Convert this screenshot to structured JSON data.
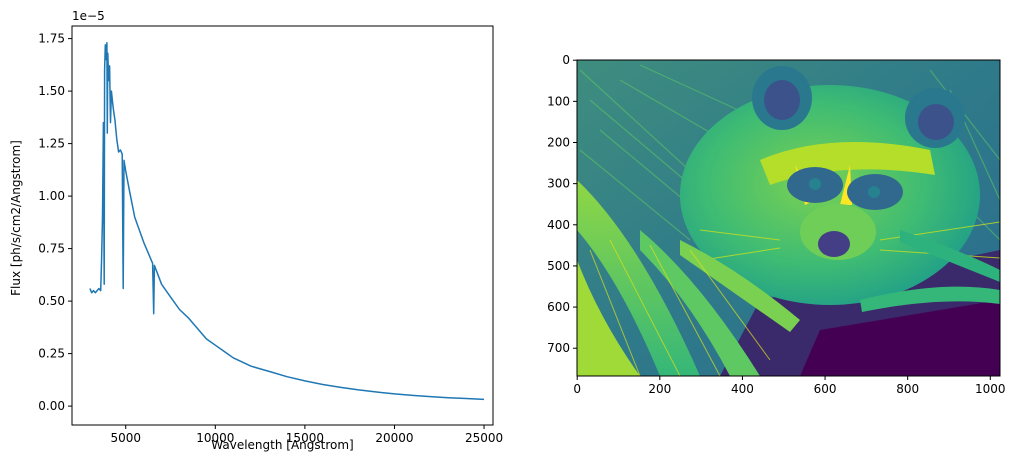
{
  "chart_data": [
    {
      "type": "line",
      "title": "",
      "xlabel": "Wavelength [Angstrom]",
      "ylabel": "Flux [ph/s/cm2/Angstrom]",
      "y_offset_label": "1e−5",
      "xlim": [
        2000,
        25500
      ],
      "ylim": [
        -0.09,
        1.81
      ],
      "x_ticks": [
        5000,
        10000,
        15000,
        20000,
        25000
      ],
      "x_tick_labels": [
        "5000",
        "10000",
        "15000",
        "20000",
        "25000"
      ],
      "y_ticks": [
        0.0,
        0.25,
        0.5,
        0.75,
        1.0,
        1.25,
        1.5,
        1.75
      ],
      "y_tick_labels": [
        "0.00",
        "0.25",
        "0.50",
        "0.75",
        "1.00",
        "1.25",
        "1.50",
        "1.75"
      ],
      "grid": false,
      "color": "#1f77b4",
      "series": [
        {
          "x": [
            3000,
            3100,
            3200,
            3300,
            3400,
            3500,
            3600,
            3650,
            3700,
            3750,
            3800,
            3820,
            3860,
            3900,
            3950,
            3970,
            4000,
            4050,
            4100,
            4150,
            4200,
            4250,
            4300,
            4400,
            4500,
            4600,
            4700,
            4800,
            4860,
            4900,
            5000,
            5200,
            5500,
            6000,
            6500,
            6563,
            6600,
            7000,
            7500,
            8000,
            8500,
            8700,
            8800,
            9000,
            9200,
            9500,
            10000,
            10500,
            11000,
            12000,
            12800,
            13000,
            14000,
            15000,
            16000,
            17000,
            18000,
            19000,
            20000,
            21000,
            22000,
            23000,
            24000,
            25000
          ],
          "y": [
            0.56,
            0.54,
            0.55,
            0.54,
            0.55,
            0.56,
            0.55,
            0.7,
            0.9,
            1.35,
            0.58,
            1.6,
            1.72,
            1.65,
            1.73,
            1.3,
            1.68,
            1.55,
            1.62,
            1.35,
            1.5,
            1.46,
            1.42,
            1.36,
            1.27,
            1.21,
            1.22,
            1.2,
            0.56,
            1.17,
            1.12,
            1.03,
            0.9,
            0.78,
            0.68,
            0.44,
            0.67,
            0.58,
            0.52,
            0.46,
            0.42,
            0.4,
            0.39,
            0.37,
            0.35,
            0.32,
            0.29,
            0.26,
            0.23,
            0.19,
            0.17,
            0.165,
            0.14,
            0.12,
            0.103,
            0.089,
            0.077,
            0.067,
            0.058,
            0.051,
            0.045,
            0.04,
            0.036,
            0.032
          ]
        }
      ]
    },
    {
      "type": "heatmap",
      "title": "",
      "colormap": "viridis",
      "image_shape": [
        768,
        1024
      ],
      "xlim": [
        -0.5,
        1023.5
      ],
      "ylim": [
        767.5,
        -0.5
      ],
      "x_ticks": [
        0,
        200,
        400,
        600,
        800,
        1000
      ],
      "x_tick_labels": [
        "0",
        "200",
        "400",
        "600",
        "800",
        "1000"
      ],
      "y_ticks": [
        0,
        100,
        200,
        300,
        400,
        500,
        600,
        700
      ],
      "y_tick_labels": [
        "0",
        "100",
        "200",
        "300",
        "400",
        "500",
        "600",
        "700"
      ],
      "grid": false
    }
  ]
}
